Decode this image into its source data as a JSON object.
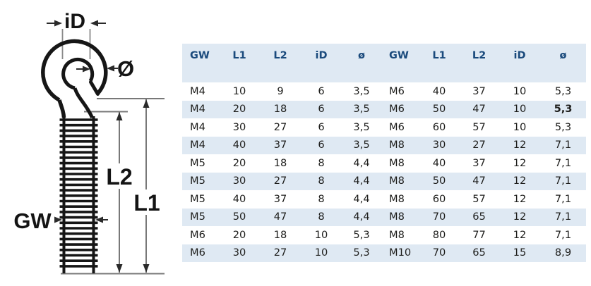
{
  "diagram": {
    "labels": {
      "inner_diameter": "iD",
      "wire_diameter": "Ø",
      "thread_length": "L2",
      "total_length": "L1",
      "thread_size": "GW"
    }
  },
  "table": {
    "headers": [
      "GW",
      "L1",
      "L2",
      "iD",
      "ø",
      "GW",
      "L1",
      "L2",
      "iD",
      "ø"
    ],
    "rows": [
      [
        "M4",
        "10",
        "9",
        "6",
        "3,5",
        "M6",
        "40",
        "37",
        "10",
        "5,3"
      ],
      [
        "M4",
        "20",
        "18",
        "6",
        "3,5",
        "M6",
        "50",
        "47",
        "10",
        "5,3"
      ],
      [
        "M4",
        "30",
        "27",
        "6",
        "3,5",
        "M6",
        "60",
        "57",
        "10",
        "5,3"
      ],
      [
        "M4",
        "40",
        "37",
        "6",
        "3,5",
        "M8",
        "30",
        "27",
        "12",
        "7,1"
      ],
      [
        "M5",
        "20",
        "18",
        "8",
        "4,4",
        "M8",
        "40",
        "37",
        "12",
        "7,1"
      ],
      [
        "M5",
        "30",
        "27",
        "8",
        "4,4",
        "M8",
        "50",
        "47",
        "12",
        "7,1"
      ],
      [
        "M5",
        "40",
        "37",
        "8",
        "4,4",
        "M8",
        "60",
        "57",
        "12",
        "7,1"
      ],
      [
        "M5",
        "50",
        "47",
        "8",
        "4,4",
        "M8",
        "70",
        "65",
        "12",
        "7,1"
      ],
      [
        "M6",
        "20",
        "18",
        "10",
        "5,3",
        "M8",
        "80",
        "77",
        "12",
        "7,1"
      ],
      [
        "M6",
        "30",
        "27",
        "10",
        "5,3",
        "M10",
        "70",
        "65",
        "15",
        "8,9"
      ]
    ],
    "bold_cells": [
      [
        1,
        9
      ]
    ],
    "gw_columns": [
      0,
      5
    ],
    "colors": {
      "stripe": "#dfe9f3",
      "header_text": "#1a4a7c",
      "body_text": "#1d1d1b"
    }
  }
}
